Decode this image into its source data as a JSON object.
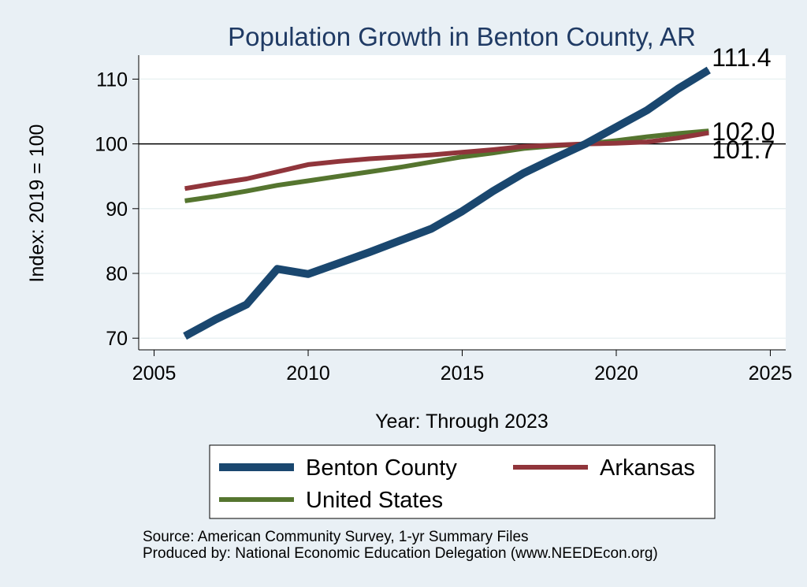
{
  "chart_data": {
    "type": "line",
    "title": "Population Growth in Benton County, AR",
    "xlabel": "Year: Through 2023",
    "ylabel": "Index: 2019 = 100",
    "xlim": [
      2004.5,
      2025.5
    ],
    "ylim": [
      68.2,
      113.7
    ],
    "xticks": [
      2005,
      2010,
      2015,
      2020,
      2025
    ],
    "yticks": [
      70,
      80,
      90,
      100,
      110
    ],
    "reference_line": 100,
    "grid": true,
    "legend_position": "bottom",
    "series": [
      {
        "name": "Benton  County",
        "color": "#1a476f",
        "width": 10,
        "end_label": "111.4",
        "x": [
          2006,
          2007,
          2008,
          2009,
          2010,
          2011,
          2012,
          2013,
          2014,
          2015,
          2016,
          2017,
          2018,
          2019,
          2020,
          2021,
          2022,
          2023
        ],
        "values": [
          70.3,
          72.9,
          75.2,
          80.7,
          79.9,
          81.6,
          83.3,
          85.1,
          86.9,
          89.6,
          92.7,
          95.5,
          97.8,
          100.0,
          102.6,
          105.2,
          108.5,
          111.4
        ]
      },
      {
        "name": "Arkansas",
        "color": "#90353b",
        "width": 6,
        "end_label": "101.7",
        "x": [
          2006,
          2007,
          2008,
          2009,
          2010,
          2011,
          2012,
          2013,
          2014,
          2015,
          2016,
          2017,
          2018,
          2019,
          2020,
          2021,
          2022,
          2023
        ],
        "values": [
          93.1,
          93.9,
          94.6,
          95.7,
          96.8,
          97.3,
          97.7,
          98.0,
          98.3,
          98.7,
          99.1,
          99.6,
          99.8,
          100.0,
          100.1,
          100.3,
          100.9,
          101.7
        ]
      },
      {
        "name": "United States",
        "color": "#55752f",
        "width": 6,
        "end_label": "102.0",
        "x": [
          2006,
          2007,
          2008,
          2009,
          2010,
          2011,
          2012,
          2013,
          2014,
          2015,
          2016,
          2017,
          2018,
          2019,
          2020,
          2021,
          2022,
          2023
        ],
        "values": [
          91.2,
          91.9,
          92.7,
          93.6,
          94.3,
          95.0,
          95.7,
          96.4,
          97.2,
          98.0,
          98.6,
          99.3,
          99.7,
          100.0,
          100.5,
          101.1,
          101.6,
          102.0
        ]
      }
    ]
  },
  "footer": {
    "source": "Source: American Community Survey, 1-yr Summary Files",
    "produced_by": "Produced by: National Economic Education Delegation (www.NEEDEcon.org)"
  }
}
